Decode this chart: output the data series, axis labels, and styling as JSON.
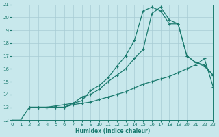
{
  "xlabel": "Humidex (Indice chaleur)",
  "bg_color": "#c8e8ec",
  "grid_color": "#a8ccd4",
  "line_color": "#1a7a6e",
  "xlim": [
    0,
    23
  ],
  "ylim": [
    12,
    21
  ],
  "xticks": [
    0,
    1,
    2,
    3,
    4,
    5,
    6,
    7,
    8,
    9,
    10,
    11,
    12,
    13,
    14,
    15,
    16,
    17,
    18,
    19,
    20,
    21,
    22,
    23
  ],
  "yticks": [
    12,
    13,
    14,
    15,
    16,
    17,
    18,
    19,
    20,
    21
  ],
  "line1_x": [
    0,
    1,
    2,
    3,
    4,
    5,
    6,
    7,
    8,
    9,
    10,
    11,
    12,
    13,
    14,
    15,
    16,
    17,
    18,
    19,
    20,
    21,
    22,
    23
  ],
  "line1_y": [
    12.0,
    12.0,
    13.0,
    13.0,
    13.0,
    13.0,
    13.0,
    13.2,
    13.3,
    13.4,
    13.6,
    13.8,
    14.0,
    14.2,
    14.5,
    14.8,
    15.0,
    15.2,
    15.4,
    15.7,
    16.0,
    16.3,
    16.8,
    14.6
  ],
  "line2_x": [
    2,
    3,
    4,
    5,
    6,
    7,
    8,
    9,
    10,
    11,
    12,
    13,
    14,
    15,
    16,
    17,
    18,
    19,
    20,
    21,
    22,
    23
  ],
  "line2_y": [
    13.0,
    13.0,
    13.0,
    13.0,
    13.0,
    13.3,
    13.5,
    14.3,
    14.7,
    15.3,
    16.2,
    17.0,
    18.2,
    20.5,
    20.8,
    20.5,
    19.5,
    19.5,
    17.0,
    16.5,
    16.3,
    15.5
  ],
  "line3_x": [
    2,
    3,
    4,
    5,
    6,
    7,
    8,
    9,
    10,
    11,
    12,
    13,
    14,
    15,
    16,
    17,
    18,
    19,
    20,
    21,
    22,
    23
  ],
  "line3_y": [
    13.0,
    13.0,
    13.0,
    13.1,
    13.2,
    13.3,
    13.8,
    14.0,
    14.4,
    15.0,
    15.5,
    16.0,
    16.8,
    17.5,
    20.3,
    20.8,
    19.8,
    19.5,
    17.0,
    16.5,
    16.2,
    15.5
  ]
}
